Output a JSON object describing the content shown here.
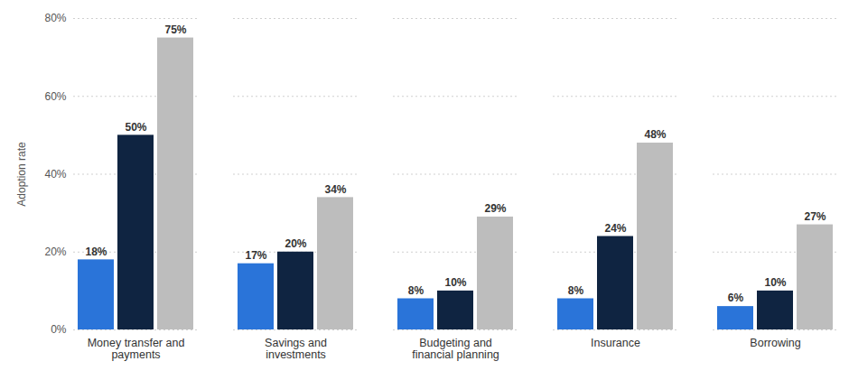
{
  "chart_data": {
    "type": "bar",
    "y_label": "Adoption rate",
    "categories": [
      "Money transfer and\npayments",
      "Savings and\ninvestments",
      "Budgeting and\nfinancial planning",
      "Insurance",
      "Borrowing"
    ],
    "series": [
      {
        "color": "#2a74d9",
        "values": [
          18,
          17,
          8,
          8,
          6
        ],
        "value_labels": [
          "18%",
          "17%",
          "8%",
          "8%",
          "6%"
        ]
      },
      {
        "color": "#0f2441",
        "values": [
          50,
          20,
          10,
          24,
          10
        ],
        "value_labels": [
          "50%",
          "20%",
          "10%",
          "24%",
          "10%"
        ]
      },
      {
        "color": "#bdbdbd",
        "values": [
          75,
          34,
          29,
          48,
          27
        ],
        "value_labels": [
          "75%",
          "34%",
          "29%",
          "48%",
          "27%"
        ]
      }
    ],
    "ylim": [
      0,
      80
    ],
    "yticks": [
      {
        "value": 0,
        "label": "0%"
      },
      {
        "value": 20,
        "label": "20%"
      },
      {
        "value": 40,
        "label": "40%"
      },
      {
        "value": 60,
        "label": "60%"
      },
      {
        "value": 80,
        "label": "80%"
      }
    ],
    "grid": true,
    "data_labels": true
  }
}
